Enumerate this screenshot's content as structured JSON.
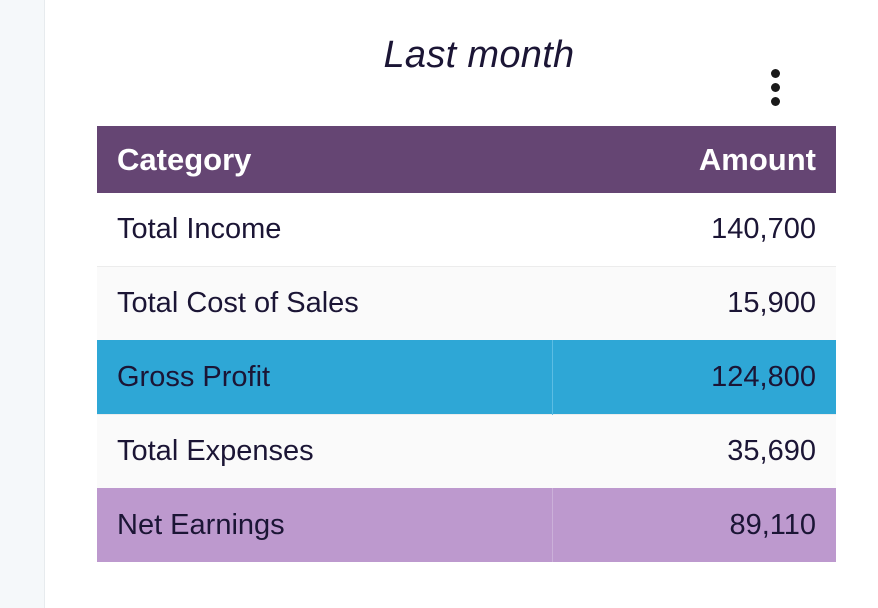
{
  "widget": {
    "title": "Last month",
    "menu_icon": "more-vertical-icon"
  },
  "table": {
    "columns": [
      "Category",
      "Amount"
    ],
    "rows": [
      {
        "category": "Total Income",
        "amount": "140,700"
      },
      {
        "category": "Total Cost of Sales",
        "amount": "15,900"
      },
      {
        "category": "Gross Profit",
        "amount": "124,800"
      },
      {
        "category": "Total Expenses",
        "amount": "35,690"
      },
      {
        "category": "Net Earnings",
        "amount": "89,110"
      }
    ]
  },
  "colors": {
    "header_bg": "#654573",
    "gross_profit_bg": "#2ea7d6",
    "net_earnings_bg": "#bd99ce",
    "text": "#1b1535"
  }
}
